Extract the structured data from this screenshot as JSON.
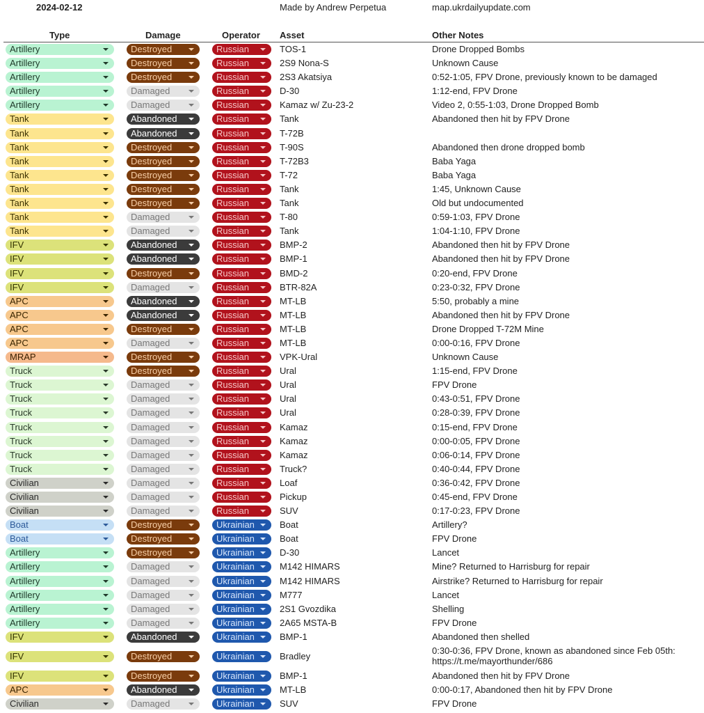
{
  "header": {
    "date": "2024-02-12",
    "made_by": "Made by Andrew Perpetua",
    "site": "map.ukrdailyupdate.com"
  },
  "columns": {
    "type": "Type",
    "damage": "Damage",
    "operator": "Operator",
    "asset": "Asset",
    "notes": "Other Notes"
  },
  "colors": {
    "type": {
      "Artillery": [
        "#b9f3d2",
        "#1f3a2a"
      ],
      "Tank": [
        "#fde58e",
        "#3a3000"
      ],
      "IFV": [
        "#dce27a",
        "#333300"
      ],
      "APC": [
        "#f7c88d",
        "#3a2500"
      ],
      "MRAP": [
        "#f5b98c",
        "#3a2000"
      ],
      "Truck": [
        "#dcf6d2",
        "#2a3a2a"
      ],
      "Civilian": [
        "#cfd1c9",
        "#2a2a2a"
      ],
      "Boat": [
        "#c5dff5",
        "#2c5a9a"
      ]
    },
    "damage": {
      "Destroyed": [
        "#7a3b0c",
        "#f8cfa8"
      ],
      "Abandoned": [
        "#3b3b3b",
        "#ffffff"
      ],
      "Damaged": [
        "#e4e4e4",
        "#777777"
      ]
    },
    "operator": {
      "Russian": [
        "#b1121c",
        "#f6c6c6"
      ],
      "Ukrainian": [
        "#1f58ad",
        "#d8e6fb"
      ]
    }
  },
  "rows": [
    [
      "Artillery",
      "Destroyed",
      "Russian",
      "TOS-1",
      "Drone Dropped Bombs"
    ],
    [
      "Artillery",
      "Destroyed",
      "Russian",
      "2S9 Nona-S",
      "Unknown Cause"
    ],
    [
      "Artillery",
      "Destroyed",
      "Russian",
      "2S3 Akatsiya",
      "0:52-1:05, FPV Drone, previously known to be damaged"
    ],
    [
      "Artillery",
      "Damaged",
      "Russian",
      "D-30",
      "1:12-end, FPV Drone"
    ],
    [
      "Artillery",
      "Damaged",
      "Russian",
      "Kamaz w/ Zu-23-2",
      "Video 2, 0:55-1:03, Drone Dropped Bomb"
    ],
    [
      "Tank",
      "Abandoned",
      "Russian",
      "Tank",
      "Abandoned then hit by FPV Drone"
    ],
    [
      "Tank",
      "Abandoned",
      "Russian",
      "T-72B",
      ""
    ],
    [
      "Tank",
      "Destroyed",
      "Russian",
      "T-90S",
      "Abandoned then drone dropped bomb"
    ],
    [
      "Tank",
      "Destroyed",
      "Russian",
      "T-72B3",
      "Baba Yaga"
    ],
    [
      "Tank",
      "Destroyed",
      "Russian",
      "T-72",
      "Baba Yaga"
    ],
    [
      "Tank",
      "Destroyed",
      "Russian",
      "Tank",
      "1:45, Unknown Cause"
    ],
    [
      "Tank",
      "Destroyed",
      "Russian",
      "Tank",
      "Old but undocumented"
    ],
    [
      "Tank",
      "Damaged",
      "Russian",
      "T-80",
      "0:59-1:03, FPV Drone"
    ],
    [
      "Tank",
      "Damaged",
      "Russian",
      "Tank",
      "1:04-1:10, FPV Drone"
    ],
    [
      "IFV",
      "Abandoned",
      "Russian",
      "BMP-2",
      "Abandoned then hit by FPV Drone"
    ],
    [
      "IFV",
      "Abandoned",
      "Russian",
      "BMP-1",
      "Abandoned then hit by FPV Drone"
    ],
    [
      "IFV",
      "Destroyed",
      "Russian",
      "BMD-2",
      "0:20-end, FPV Drone"
    ],
    [
      "IFV",
      "Damaged",
      "Russian",
      "BTR-82A",
      "0:23-0:32, FPV Drone"
    ],
    [
      "APC",
      "Abandoned",
      "Russian",
      "MT-LB",
      "5:50, probably a mine"
    ],
    [
      "APC",
      "Abandoned",
      "Russian",
      "MT-LB",
      "Abandoned then hit by FPV Drone"
    ],
    [
      "APC",
      "Destroyed",
      "Russian",
      "MT-LB",
      "Drone Dropped T-72M Mine"
    ],
    [
      "APC",
      "Damaged",
      "Russian",
      "MT-LB",
      "0:00-0:16, FPV Drone"
    ],
    [
      "MRAP",
      "Destroyed",
      "Russian",
      "VPK-Ural",
      "Unknown Cause"
    ],
    [
      "Truck",
      "Destroyed",
      "Russian",
      "Ural",
      "1:15-end, FPV Drone"
    ],
    [
      "Truck",
      "Damaged",
      "Russian",
      "Ural",
      "FPV Drone"
    ],
    [
      "Truck",
      "Damaged",
      "Russian",
      "Ural",
      "0:43-0:51, FPV Drone"
    ],
    [
      "Truck",
      "Damaged",
      "Russian",
      "Ural",
      "0:28-0:39, FPV Drone"
    ],
    [
      "Truck",
      "Damaged",
      "Russian",
      "Kamaz",
      "0:15-end, FPV Drone"
    ],
    [
      "Truck",
      "Damaged",
      "Russian",
      "Kamaz",
      "0:00-0:05, FPV Drone"
    ],
    [
      "Truck",
      "Damaged",
      "Russian",
      "Kamaz",
      "0:06-0:14, FPV Drone"
    ],
    [
      "Truck",
      "Damaged",
      "Russian",
      "Truck?",
      "0:40-0:44, FPV Drone"
    ],
    [
      "Civilian",
      "Damaged",
      "Russian",
      "Loaf",
      "0:36-0:42, FPV Drone"
    ],
    [
      "Civilian",
      "Damaged",
      "Russian",
      "Pickup",
      "0:45-end, FPV Drone"
    ],
    [
      "Civilian",
      "Damaged",
      "Russian",
      "SUV",
      "0:17-0:23, FPV Drone"
    ],
    [
      "Boat",
      "Destroyed",
      "Ukrainian",
      "Boat",
      "Artillery?"
    ],
    [
      "Boat",
      "Destroyed",
      "Ukrainian",
      "Boat",
      "FPV Drone"
    ],
    [
      "Artillery",
      "Destroyed",
      "Ukrainian",
      "D-30",
      "Lancet"
    ],
    [
      "Artillery",
      "Damaged",
      "Ukrainian",
      "M142 HIMARS",
      "Mine? Returned to Harrisburg for repair"
    ],
    [
      "Artillery",
      "Damaged",
      "Ukrainian",
      "M142 HIMARS",
      "Airstrike? Returned to Harrisburg for repair"
    ],
    [
      "Artillery",
      "Damaged",
      "Ukrainian",
      "M777",
      "Lancet"
    ],
    [
      "Artillery",
      "Damaged",
      "Ukrainian",
      "2S1 Gvozdika",
      "Shelling"
    ],
    [
      "Artillery",
      "Damaged",
      "Ukrainian",
      "2A65 MSTA-B",
      "FPV Drone"
    ],
    [
      "IFV",
      "Abandoned",
      "Ukrainian",
      "BMP-1",
      "Abandoned then shelled"
    ],
    [
      "IFV",
      "Destroyed",
      "Ukrainian",
      "Bradley",
      "0:30-0:36, FPV Drone,  known as abandoned since Feb 05th: https://t.me/mayorthunder/686"
    ],
    [
      "IFV",
      "Destroyed",
      "Ukrainian",
      "BMP-1",
      "Abandoned then hit by FPV Drone"
    ],
    [
      "APC",
      "Abandoned",
      "Ukrainian",
      "MT-LB",
      "0:00-0:17, Abandoned then hit by FPV Drone"
    ],
    [
      "Civilian",
      "Damaged",
      "Ukrainian",
      "SUV",
      "FPV Drone"
    ]
  ]
}
